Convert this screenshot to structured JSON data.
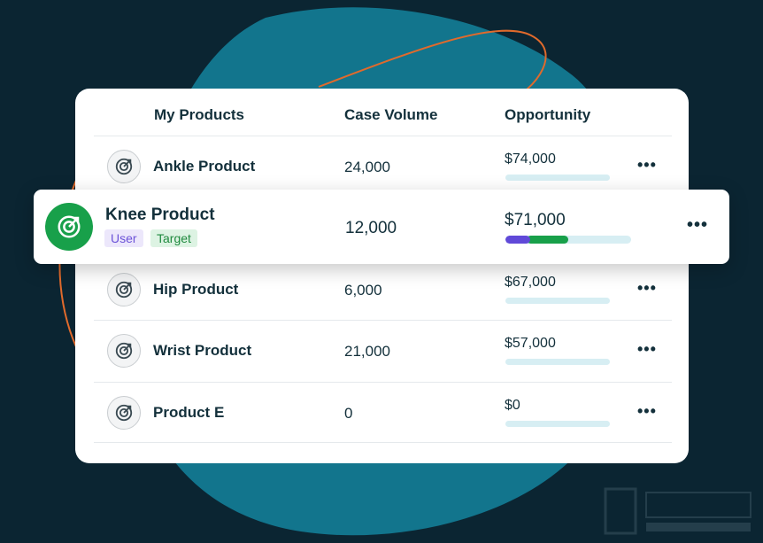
{
  "colors": {
    "background": "#0b2532",
    "blob": "#12758d",
    "curve": "#e06a2c",
    "brand_green": "#18a04a",
    "user_purple": "#6049d8"
  },
  "table": {
    "headers": {
      "product": "My Products",
      "volume": "Case Volume",
      "opportunity": "Opportunity"
    },
    "rows": [
      {
        "name": "Ankle Product",
        "volume": "24,000",
        "opportunity": "$74,000",
        "icon": "target-arrow-icon",
        "menu": "•••"
      },
      {
        "name": "Hip Product",
        "volume": "6,000",
        "opportunity": "$67,000",
        "icon": "target-arrow-icon",
        "menu": "•••"
      },
      {
        "name": "Wrist Product",
        "volume": "21,000",
        "opportunity": "$57,000",
        "icon": "target-arrow-icon",
        "menu": "•••"
      },
      {
        "name": "Product E",
        "volume": "0",
        "opportunity": "$0",
        "icon": "target-arrow-icon",
        "menu": "•••"
      }
    ]
  },
  "highlighted": {
    "name": "Knee Product",
    "tags": {
      "user": "User",
      "target": "Target"
    },
    "volume": "12,000",
    "opportunity": "$71,000",
    "progress": {
      "user": 0.2,
      "target": 0.5
    },
    "menu": "•••",
    "icon": "target-arrow-icon"
  }
}
